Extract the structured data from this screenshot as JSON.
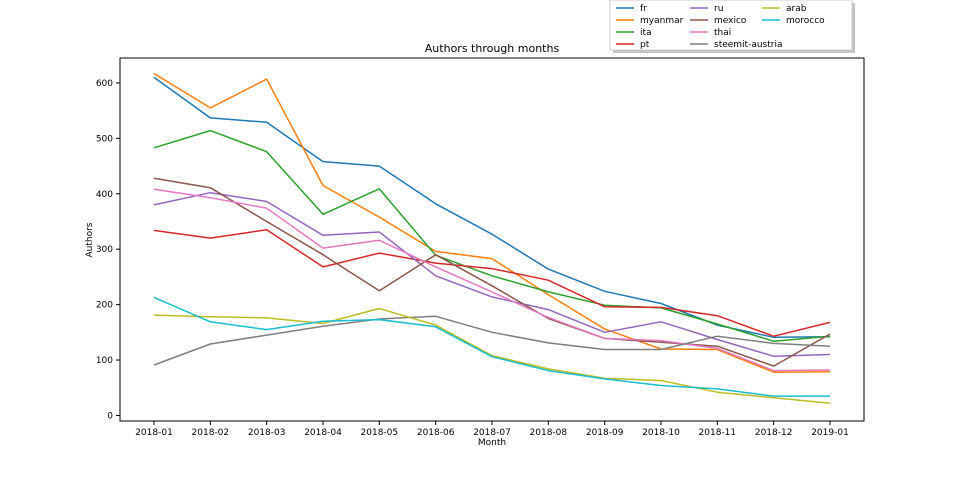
{
  "chart_data": {
    "type": "line",
    "title": "Authors through months",
    "xlabel": "Month",
    "ylabel": "Authors",
    "categories": [
      "2018-01",
      "2018-02",
      "2018-03",
      "2018-04",
      "2018-05",
      "2018-06",
      "2018-07",
      "2018-08",
      "2018-09",
      "2018-10",
      "2018-11",
      "2018-12",
      "2019-01"
    ],
    "ylim": [
      -10,
      645
    ],
    "yticks": [
      0,
      100,
      200,
      300,
      400,
      500,
      600
    ],
    "grid": false,
    "legend": {
      "placement": "top-right",
      "columns": 3
    },
    "series": [
      {
        "name": "fr",
        "color": "#1f77b4",
        "values": [
          610,
          537,
          529,
          458,
          450,
          382,
          327,
          264,
          224,
          202,
          163,
          141,
          142
        ]
      },
      {
        "name": "myanmar",
        "color": "#ff7f0e",
        "values": [
          617,
          555,
          607,
          415,
          358,
          296,
          283,
          218,
          156,
          120,
          119,
          78,
          79
        ]
      },
      {
        "name": "ita",
        "color": "#2ca02c",
        "values": [
          483,
          514,
          476,
          363,
          409,
          289,
          252,
          223,
          199,
          194,
          165,
          134,
          143
        ]
      },
      {
        "name": "pt",
        "color": "#d62728",
        "values": [
          334,
          320,
          335,
          268,
          293,
          275,
          265,
          244,
          196,
          195,
          180,
          143,
          168
        ]
      },
      {
        "name": "ru",
        "color": "#9467bd",
        "values": [
          380,
          402,
          386,
          325,
          331,
          252,
          214,
          191,
          150,
          169,
          137,
          107,
          110
        ]
      },
      {
        "name": "mexico",
        "color": "#8c564b",
        "values": [
          428,
          411,
          350,
          290,
          225,
          290,
          234,
          175,
          139,
          132,
          125,
          89,
          147
        ]
      },
      {
        "name": "thai",
        "color": "#e377c2",
        "values": [
          408,
          393,
          374,
          302,
          316,
          268,
          223,
          177,
          139,
          135,
          121,
          81,
          82
        ]
      },
      {
        "name": "steemit-austria",
        "color": "#7f7f7f",
        "values": [
          91,
          129,
          145,
          161,
          174,
          179,
          150,
          131,
          119,
          119,
          143,
          130,
          125
        ]
      },
      {
        "name": "arab",
        "color": "#bcbd22",
        "values": [
          181,
          178,
          176,
          166,
          193,
          163,
          108,
          84,
          67,
          63,
          42,
          32,
          22
        ]
      },
      {
        "name": "morocco",
        "color": "#17becf",
        "values": [
          213,
          169,
          155,
          170,
          173,
          160,
          106,
          81,
          66,
          54,
          48,
          35,
          35
        ]
      }
    ]
  }
}
